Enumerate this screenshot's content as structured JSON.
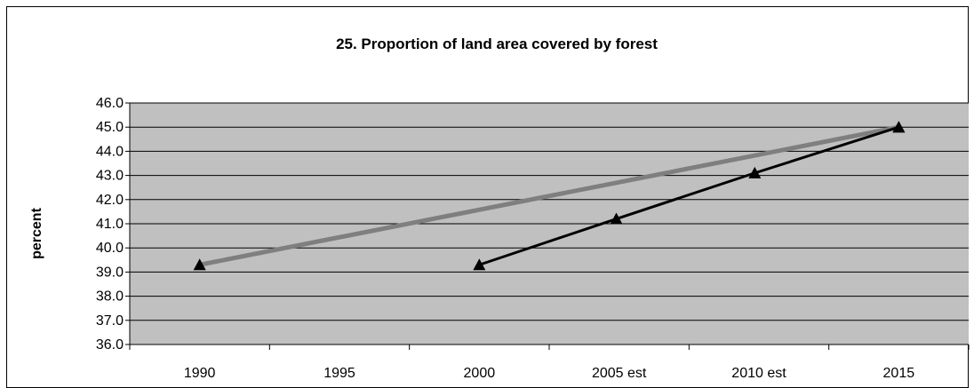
{
  "chart_data": {
    "type": "line",
    "title": "25. Proportion of land area covered by forest",
    "xlabel": "",
    "ylabel": "percent",
    "categories": [
      "1990",
      "1995",
      "2000",
      "2005 est",
      "2010 est",
      "2015"
    ],
    "ylim": [
      36.0,
      46.0
    ],
    "yticks": [
      "36.0",
      "37.0",
      "38.0",
      "39.0",
      "40.0",
      "41.0",
      "42.0",
      "43.0",
      "44.0",
      "45.0",
      "46.0"
    ],
    "grid": true,
    "series": [
      {
        "color": "#7f7f7f",
        "points": [
          {
            "x": 0,
            "y": 39.3
          },
          {
            "x": 5,
            "y": 45.0
          }
        ]
      },
      {
        "color": "#000000",
        "marker": "triangle",
        "points": [
          {
            "x": 2,
            "y": 39.3
          },
          {
            "x": 2.98,
            "y": 41.2
          },
          {
            "x": 3.97,
            "y": 43.1
          },
          {
            "x": 5,
            "y": 45.0
          }
        ]
      }
    ],
    "colors": {
      "plot_background": "#c0c0c0",
      "gridline": "#000000"
    }
  }
}
